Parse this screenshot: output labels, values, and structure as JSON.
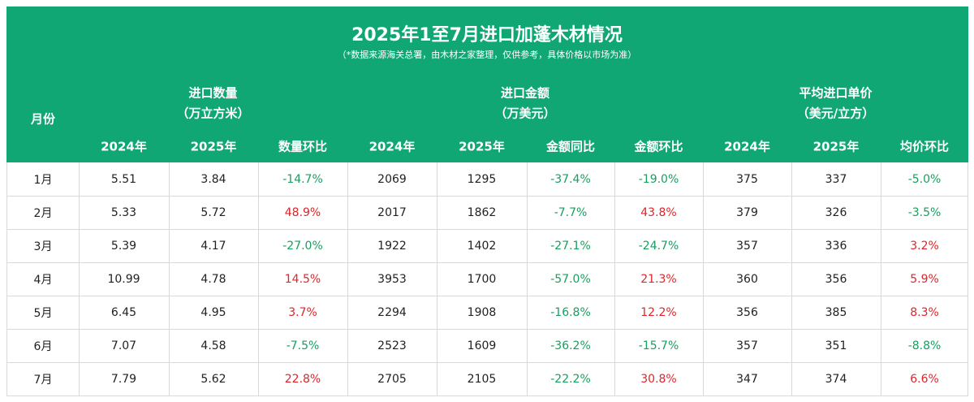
{
  "header": {
    "title": "2025年1至7月进口加蓬木材情况",
    "subtitle": "（*数据来源海关总署，由木材之家整理，仅供参考，具体价格以市场为准）"
  },
  "month_header": "月份",
  "groups": [
    {
      "label": "进口数量",
      "unit": "（万立方米）",
      "columns": [
        "2024年",
        "2025年",
        "数量环比"
      ]
    },
    {
      "label": "进口金额",
      "unit": "（万美元）",
      "columns": [
        "2024年",
        "2025年",
        "金额同比",
        "金额环比"
      ]
    },
    {
      "label": "平均进口单价",
      "unit": "（美元/立方）",
      "columns": [
        "2024年",
        "2025年",
        "均价环比"
      ]
    }
  ],
  "rows": [
    [
      "1月",
      "5.51",
      "3.84",
      "-14.7%",
      "2069",
      "1295",
      "-37.4%",
      "-19.0%",
      "375",
      "337",
      "-5.0%"
    ],
    [
      "2月",
      "5.33",
      "5.72",
      "48.9%",
      "2017",
      "1862",
      "-7.7%",
      "43.8%",
      "379",
      "326",
      "-3.5%"
    ],
    [
      "3月",
      "5.39",
      "4.17",
      "-27.0%",
      "1922",
      "1402",
      "-27.1%",
      "-24.7%",
      "357",
      "336",
      "3.2%"
    ],
    [
      "4月",
      "10.99",
      "4.78",
      "14.5%",
      "3953",
      "1700",
      "-57.0%",
      "21.3%",
      "360",
      "356",
      "5.9%"
    ],
    [
      "5月",
      "6.45",
      "4.95",
      "3.7%",
      "2294",
      "1908",
      "-16.8%",
      "12.2%",
      "356",
      "385",
      "8.3%"
    ],
    [
      "6月",
      "7.07",
      "4.58",
      "-7.5%",
      "2523",
      "1609",
      "-36.2%",
      "-15.7%",
      "357",
      "351",
      "-8.8%"
    ],
    [
      "7月",
      "7.79",
      "5.62",
      "22.8%",
      "2705",
      "2105",
      "-22.2%",
      "30.8%",
      "347",
      "374",
      "6.6%"
    ]
  ]
}
